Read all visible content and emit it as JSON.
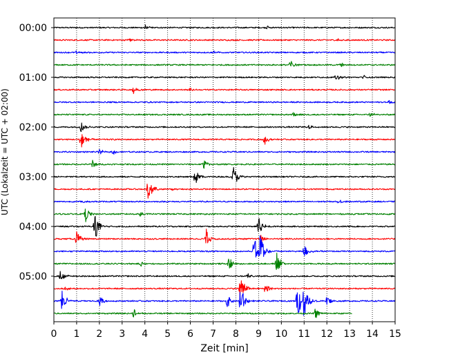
{
  "chart_data": {
    "type": "line",
    "chart_kind": "helicorder",
    "xlabel": "Zeit  [min]",
    "ylabel": "UTC (Lokalzeit = UTC + 02:00)",
    "xlim": [
      0,
      15
    ],
    "x_ticks": [
      "0",
      "1",
      "2",
      "3",
      "4",
      "5",
      "6",
      "7",
      "8",
      "9",
      "10",
      "11",
      "12",
      "13",
      "14",
      "15"
    ],
    "y_tick_labels": [
      "00:00",
      "01:00",
      "02:00",
      "03:00",
      "04:00",
      "05:00"
    ],
    "grid": "vertical dotted at each minute",
    "traces_per_hour": 4,
    "trace_minutes": 15,
    "colors": [
      "#000000",
      "#ff0000",
      "#0000ff",
      "#008000"
    ],
    "traces": [
      {
        "start": "00:00",
        "end_min": 15,
        "events": [
          {
            "t": 4.0,
            "amp": 0.3
          },
          {
            "t": 9.4,
            "amp": 0.2
          }
        ]
      },
      {
        "start": "00:15",
        "end_min": 15,
        "events": [
          {
            "t": 3.3,
            "amp": 0.3
          },
          {
            "t": 12.5,
            "amp": 0.2
          }
        ]
      },
      {
        "start": "00:30",
        "end_min": 15,
        "events": [
          {
            "t": 1.0,
            "amp": 0.2
          },
          {
            "t": 7.0,
            "amp": 0.2
          }
        ]
      },
      {
        "start": "00:45",
        "end_min": 15,
        "events": [
          {
            "t": 10.4,
            "amp": 0.5
          },
          {
            "t": 12.6,
            "amp": 0.25
          }
        ]
      },
      {
        "start": "01:00",
        "end_min": 15,
        "events": [
          {
            "t": 12.4,
            "amp": 0.35
          },
          {
            "t": 13.6,
            "amp": 0.25
          }
        ]
      },
      {
        "start": "01:15",
        "end_min": 15,
        "events": [
          {
            "t": 3.5,
            "amp": 0.35
          },
          {
            "t": 6.0,
            "amp": 0.2
          }
        ]
      },
      {
        "start": "01:30",
        "end_min": 15,
        "events": [
          {
            "t": 14.7,
            "amp": 0.2
          }
        ]
      },
      {
        "start": "01:45",
        "end_min": 15,
        "events": [
          {
            "t": 10.5,
            "amp": 0.3
          },
          {
            "t": 13.9,
            "amp": 0.3
          }
        ]
      },
      {
        "start": "02:00",
        "end_min": 15,
        "events": [
          {
            "t": 1.2,
            "amp": 0.6
          },
          {
            "t": 11.2,
            "amp": 0.2
          }
        ]
      },
      {
        "start": "02:15",
        "end_min": 15,
        "events": [
          {
            "t": 1.2,
            "amp": 1.3
          },
          {
            "t": 9.2,
            "amp": 0.8
          }
        ]
      },
      {
        "start": "02:30",
        "end_min": 15,
        "events": [
          {
            "t": 2.0,
            "amp": 0.3
          },
          {
            "t": 2.6,
            "amp": 0.3
          }
        ]
      },
      {
        "start": "02:45",
        "end_min": 15,
        "events": [
          {
            "t": 1.7,
            "amp": 0.45
          },
          {
            "t": 6.6,
            "amp": 0.6
          }
        ]
      },
      {
        "start": "03:00",
        "end_min": 15,
        "events": [
          {
            "t": 6.2,
            "amp": 1.0
          },
          {
            "t": 7.9,
            "amp": 1.2
          }
        ]
      },
      {
        "start": "03:15",
        "end_min": 15,
        "events": [
          {
            "t": 4.15,
            "amp": 1.6
          },
          {
            "t": 5.2,
            "amp": 0.2
          }
        ]
      },
      {
        "start": "03:30",
        "end_min": 15,
        "events": [
          {
            "t": 1.3,
            "amp": 0.2
          },
          {
            "t": 12.5,
            "amp": 0.2
          }
        ]
      },
      {
        "start": "03:45",
        "end_min": 15,
        "events": [
          {
            "t": 1.4,
            "amp": 0.8
          },
          {
            "t": 3.8,
            "amp": 0.3
          }
        ]
      },
      {
        "start": "04:00",
        "end_min": 15,
        "events": [
          {
            "t": 1.8,
            "amp": 1.7
          },
          {
            "t": 9.0,
            "amp": 1.2
          }
        ]
      },
      {
        "start": "04:15",
        "end_min": 15,
        "events": [
          {
            "t": 1.0,
            "amp": 0.8
          },
          {
            "t": 6.7,
            "amp": 1.0
          },
          {
            "t": 9.1,
            "amp": 0.4
          }
        ]
      },
      {
        "start": "04:30",
        "end_min": 15,
        "events": [
          {
            "t": 9.05,
            "amp": 2.4
          },
          {
            "t": 8.8,
            "amp": 1.5
          },
          {
            "t": 11.0,
            "amp": 0.8
          }
        ]
      },
      {
        "start": "04:45",
        "end_min": 15,
        "events": [
          {
            "t": 7.7,
            "amp": 0.7
          },
          {
            "t": 9.8,
            "amp": 1.3
          },
          {
            "t": 3.8,
            "amp": 0.3
          }
        ]
      },
      {
        "start": "05:00",
        "end_min": 15,
        "events": [
          {
            "t": 0.3,
            "amp": 0.7
          },
          {
            "t": 8.5,
            "amp": 0.3
          }
        ]
      },
      {
        "start": "05:15",
        "end_min": 15,
        "events": [
          {
            "t": 8.2,
            "amp": 1.8
          },
          {
            "t": 9.3,
            "amp": 0.6
          },
          {
            "t": 0.5,
            "amp": 0.2
          }
        ]
      },
      {
        "start": "05:30",
        "end_min": 15,
        "events": [
          {
            "t": 0.35,
            "amp": 1.5
          },
          {
            "t": 8.2,
            "amp": 1.8
          },
          {
            "t": 10.7,
            "amp": 2.2
          },
          {
            "t": 11.0,
            "amp": 1.8
          },
          {
            "t": 7.6,
            "amp": 0.8
          },
          {
            "t": 12.0,
            "amp": 0.6
          },
          {
            "t": 2.0,
            "amp": 0.6
          }
        ]
      },
      {
        "start": "05:45",
        "end_min": 13.1,
        "events": [
          {
            "t": 3.5,
            "amp": 0.6
          },
          {
            "t": 11.5,
            "amp": 0.6
          }
        ]
      }
    ]
  }
}
